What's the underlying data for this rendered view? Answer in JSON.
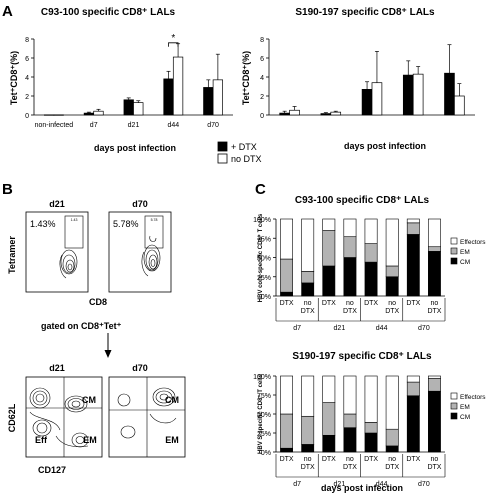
{
  "panels": {
    "A": "A",
    "B": "B",
    "C": "C"
  },
  "chart_data": [
    {
      "type": "bar",
      "panel": "A",
      "title": "C93-100 specific CD8⁺ LALs",
      "ylabel": "Tet⁺CD8⁺(%)",
      "xlabel": "days post infection",
      "ylim": [
        0,
        8
      ],
      "yticks": [
        0,
        2,
        4,
        6,
        8
      ],
      "categories": [
        "non-infected",
        "d7",
        "d21",
        "d44",
        "d70"
      ],
      "series": [
        {
          "name": "+ DTX",
          "color": "#000000",
          "values": [
            0.02,
            0.2,
            1.6,
            3.8,
            2.9
          ],
          "errors": [
            0,
            0.1,
            0.2,
            0.8,
            0.8
          ]
        },
        {
          "name": "no DTX",
          "color": "#ffffff",
          "values": [
            0.02,
            0.4,
            1.3,
            6.1,
            3.7
          ],
          "errors": [
            0,
            0.2,
            0.2,
            1.4,
            2.7
          ]
        }
      ],
      "significance": "*"
    },
    {
      "type": "bar",
      "panel": "A",
      "title": "S190-197 specific CD8⁺ LALs",
      "ylabel": "Tet⁺CD8⁺(%)",
      "xlabel": "days post infection",
      "ylim": [
        0,
        8
      ],
      "yticks": [
        0,
        2,
        4,
        6,
        8
      ],
      "categories": [
        "non-infected",
        "d7",
        "d21",
        "d44",
        "d70"
      ],
      "series": [
        {
          "name": "+ DTX",
          "color": "#000000",
          "values": [
            0.2,
            0.15,
            2.7,
            4.2,
            4.4
          ],
          "errors": [
            0.2,
            0.1,
            0.8,
            1.5,
            3.0
          ]
        },
        {
          "name": "no DTX",
          "color": "#ffffff",
          "values": [
            0.5,
            0.3,
            3.4,
            4.3,
            2.0
          ],
          "errors": [
            0.4,
            0.1,
            3.3,
            0.8,
            1.3
          ]
        }
      ]
    },
    {
      "type": "bar",
      "panel": "C",
      "stacked": true,
      "title": "C93-100 specific CD8⁺ LALs",
      "ylabel": "HBV core-specific CD8⁺ T cells",
      "xlabel": "",
      "ylim": [
        0,
        100
      ],
      "yticks": [
        "0%",
        "25%",
        "50%",
        "75%",
        "100%"
      ],
      "bar_labels": [
        [
          "DTX"
        ],
        [
          "no",
          "DTX"
        ],
        [
          "DTX"
        ],
        [
          "no",
          "DTX"
        ],
        [
          "DTX"
        ],
        [
          "no",
          "DTX"
        ],
        [
          "DTX"
        ],
        [
          "no",
          "DTX"
        ]
      ],
      "groups": [
        "d7",
        "d21",
        "d44",
        "d70"
      ],
      "series": [
        {
          "name": "CM",
          "color": "#000000",
          "values": [
            5,
            17,
            39,
            50,
            44,
            25,
            80,
            58
          ]
        },
        {
          "name": "EM",
          "color": "#b3b3b3",
          "values": [
            43,
            15,
            46,
            27,
            24,
            14,
            15,
            6
          ]
        },
        {
          "name": "Effectors",
          "color": "#ffffff",
          "values": [
            52,
            68,
            15,
            23,
            32,
            61,
            5,
            36
          ]
        }
      ]
    },
    {
      "type": "bar",
      "panel": "C",
      "stacked": true,
      "title": "S190-197 specific CD8⁺ LALs",
      "ylabel": "HBV S-specific CD8⁺ T cells",
      "xlabel": "days post infection",
      "ylim": [
        0,
        100
      ],
      "yticks": [
        "0%",
        "25%",
        "50%",
        "75%",
        "100%"
      ],
      "bar_labels": [
        [
          "DTX"
        ],
        [
          "no",
          "DTX"
        ],
        [
          "DTX"
        ],
        [
          "no",
          "DTX"
        ],
        [
          "DTX"
        ],
        [
          "no",
          "DTX"
        ],
        [
          "DTX"
        ],
        [
          "no",
          "DTX"
        ]
      ],
      "groups": [
        "d7",
        "d21",
        "d44",
        "d70"
      ],
      "series": [
        {
          "name": "CM",
          "color": "#000000",
          "values": [
            5,
            10,
            22,
            32,
            25,
            8,
            74,
            80
          ]
        },
        {
          "name": "EM",
          "color": "#b3b3b3",
          "values": [
            45,
            37,
            43,
            18,
            14,
            22,
            18,
            17
          ]
        },
        {
          "name": "Effectors",
          "color": "#ffffff",
          "values": [
            50,
            53,
            35,
            50,
            61,
            70,
            8,
            3
          ]
        }
      ]
    }
  ],
  "flow": {
    "top": {
      "ylabel": "Tetramer",
      "xlabel": "CD8",
      "plots": [
        {
          "title": "d21",
          "percent": "1.43%",
          "gate_value": "1.43"
        },
        {
          "title": "d70",
          "percent": "5.78%",
          "gate_value": "5.78"
        }
      ]
    },
    "gated_text": "gated on CD8⁺Tet⁺",
    "bottom": {
      "ylabel": "CD62L",
      "xlabel": "CD127",
      "plots": [
        {
          "title": "d21",
          "labels": [
            "CM",
            "Eff",
            "EM"
          ]
        },
        {
          "title": "d70",
          "labels": [
            "CM",
            "EM"
          ]
        }
      ]
    }
  }
}
